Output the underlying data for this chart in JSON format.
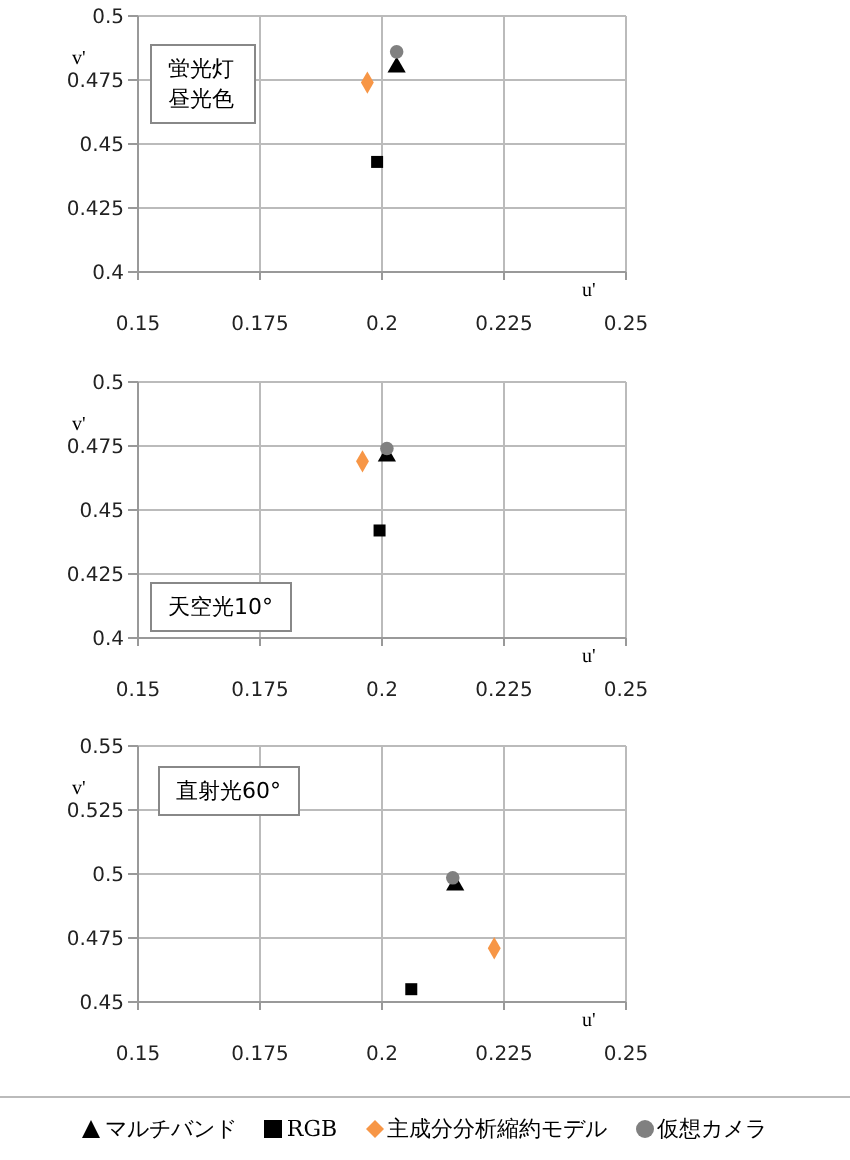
{
  "chart_data": [
    {
      "type": "scatter",
      "xlabel": "u'",
      "ylabel": "v'",
      "annotations": [
        "蛍光灯昼光色"
      ],
      "xlim": [
        0.15,
        0.25
      ],
      "xticks": [
        0.15,
        0.175,
        0.2,
        0.225,
        0.25
      ],
      "ylim": [
        0.4,
        0.5
      ],
      "yticks": [
        0.4,
        0.425,
        0.45,
        0.475,
        0.5
      ],
      "grid": true,
      "series": [
        {
          "color": "#000000",
          "marker": "triangle",
          "x": [
            0.203
          ],
          "values": [
            0.48
          ]
        },
        {
          "color": "#000000",
          "marker": "square",
          "x": [
            0.199
          ],
          "values": [
            0.443
          ]
        },
        {
          "color": "#f79646",
          "marker": "diamond",
          "x": [
            0.197
          ],
          "values": [
            0.474
          ]
        },
        {
          "color": "#808080",
          "marker": "circle",
          "x": [
            0.203
          ],
          "values": [
            0.486
          ]
        }
      ]
    },
    {
      "type": "scatter",
      "xlabel": "u'",
      "ylabel": "v'",
      "annotations": [
        "天空光10°"
      ],
      "xlim": [
        0.15,
        0.25
      ],
      "xticks": [
        0.15,
        0.175,
        0.2,
        0.225,
        0.25
      ],
      "ylim": [
        0.4,
        0.5
      ],
      "yticks": [
        0.4,
        0.425,
        0.45,
        0.475,
        0.5
      ],
      "grid": true,
      "series": [
        {
          "color": "#000000",
          "marker": "triangle",
          "x": [
            0.201
          ],
          "values": [
            0.471
          ]
        },
        {
          "color": "#000000",
          "marker": "square",
          "x": [
            0.1995
          ],
          "values": [
            0.442
          ]
        },
        {
          "color": "#f79646",
          "marker": "diamond",
          "x": [
            0.196
          ],
          "values": [
            0.469
          ]
        },
        {
          "color": "#808080",
          "marker": "circle",
          "x": [
            0.201
          ],
          "values": [
            0.474
          ]
        }
      ]
    },
    {
      "type": "scatter",
      "xlabel": "u'",
      "ylabel": "v'",
      "annotations": [
        "直射光60°"
      ],
      "xlim": [
        0.15,
        0.25
      ],
      "xticks": [
        0.15,
        0.175,
        0.2,
        0.225,
        0.25
      ],
      "ylim": [
        0.45,
        0.55
      ],
      "yticks": [
        0.45,
        0.475,
        0.5,
        0.525,
        0.55
      ],
      "grid": true,
      "legend": "bottom",
      "series": [
        {
          "name": "マルチバンド",
          "color": "#000000",
          "marker": "triangle",
          "x": [
            0.215
          ],
          "values": [
            0.4956
          ]
        },
        {
          "name": "RGB",
          "color": "#000000",
          "marker": "square",
          "x": [
            0.206
          ],
          "values": [
            0.455
          ]
        },
        {
          "name": "主成分分析縮約モデル",
          "color": "#f79646",
          "marker": "diamond",
          "x": [
            0.223
          ],
          "values": [
            0.471
          ]
        },
        {
          "name": "仮想カメラ",
          "color": "#808080",
          "marker": "circle",
          "x": [
            0.2145
          ],
          "values": [
            0.4985
          ]
        }
      ]
    }
  ]
}
